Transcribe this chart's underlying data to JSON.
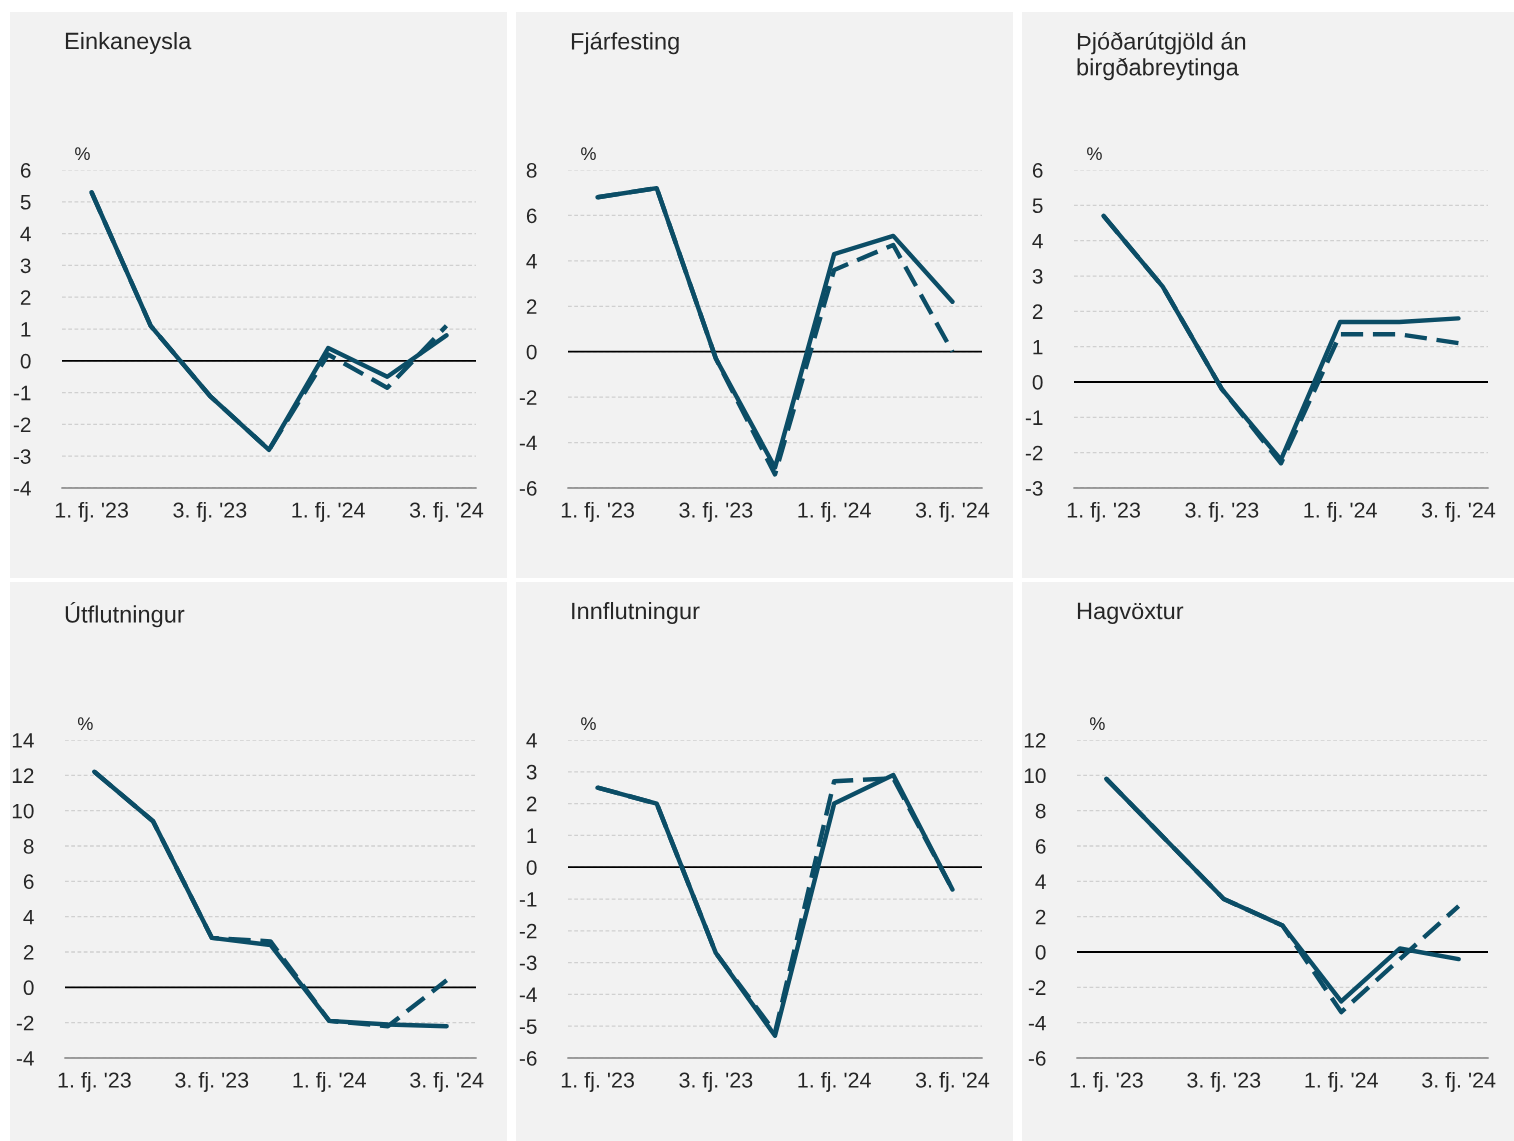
{
  "chart_data": [
    {
      "type": "line",
      "title": "Einkaneysla",
      "ylabel": "%",
      "categories": [
        "1. fj. '23",
        null,
        "3. fj. '23",
        null,
        "1. fj. '24",
        null,
        "3. fj. '24"
      ],
      "ylim": [
        -4,
        6
      ],
      "yticks": [
        -4,
        -3,
        -2,
        -1,
        0,
        1,
        2,
        3,
        4,
        5,
        6
      ],
      "grid": "y",
      "ref_lines": [
        {
          "axis": "y",
          "value": 0,
          "color": "#000000"
        }
      ],
      "series": [
        {
          "color": "#0b4d66",
          "line_style": "solid",
          "values": [
            5.3,
            1.1,
            -1.1,
            -2.8,
            0.4,
            -0.5,
            0.8
          ]
        },
        {
          "color": "#0b4d66",
          "line_style": "dashed",
          "values": [
            5.3,
            1.1,
            -1.1,
            -2.8,
            0.2,
            -0.85,
            1.1
          ]
        }
      ]
    },
    {
      "type": "line",
      "title": "Fjárfesting",
      "ylabel": "%",
      "categories": [
        "1. fj. '23",
        null,
        "3. fj. '23",
        null,
        "1. fj. '24",
        null,
        "3. fj. '24"
      ],
      "ylim": [
        -6,
        8
      ],
      "yticks": [
        -6,
        -4,
        -2,
        0,
        2,
        4,
        6,
        8
      ],
      "grid": "y",
      "ref_lines": [
        {
          "axis": "y",
          "value": 0,
          "color": "#000000"
        }
      ],
      "series": [
        {
          "color": "#0b4d66",
          "line_style": "solid",
          "values": [
            6.8,
            7.2,
            -0.3,
            -5.1,
            4.3,
            5.1,
            2.2
          ]
        },
        {
          "color": "#0b4d66",
          "line_style": "dashed",
          "values": [
            6.8,
            7.2,
            -0.3,
            -5.4,
            3.6,
            4.7,
            0.0
          ]
        }
      ]
    },
    {
      "type": "line",
      "title": "Þjóðarútgjöld án\nbirgðabreytinga",
      "ylabel": "%",
      "categories": [
        "1. fj. '23",
        null,
        "3. fj. '23",
        null,
        "1. fj. '24",
        null,
        "3. fj. '24"
      ],
      "ylim": [
        -3,
        6
      ],
      "yticks": [
        -3,
        -2,
        -1,
        0,
        1,
        2,
        3,
        4,
        5,
        6
      ],
      "grid": "y",
      "ref_lines": [
        {
          "axis": "y",
          "value": 0,
          "color": "#000000"
        }
      ],
      "series": [
        {
          "color": "#0b4d66",
          "line_style": "solid",
          "values": [
            4.7,
            2.7,
            -0.2,
            -2.2,
            1.7,
            1.7,
            1.8
          ]
        },
        {
          "color": "#0b4d66",
          "line_style": "dashed",
          "values": [
            4.7,
            2.7,
            -0.2,
            -2.3,
            1.35,
            1.35,
            1.1
          ]
        }
      ]
    },
    {
      "type": "line",
      "title": "Útflutningur",
      "ylabel": "%",
      "categories": [
        "1. fj. '23",
        null,
        "3. fj. '23",
        null,
        "1. fj. '24",
        null,
        "3. fj. '24"
      ],
      "ylim": [
        -4,
        14
      ],
      "yticks": [
        -4,
        -2,
        0,
        2,
        4,
        6,
        8,
        10,
        12,
        14
      ],
      "grid": "y",
      "ref_lines": [
        {
          "axis": "y",
          "value": 0,
          "color": "#000000"
        }
      ],
      "series": [
        {
          "color": "#0b4d66",
          "line_style": "solid",
          "values": [
            12.2,
            9.4,
            2.8,
            2.4,
            -1.9,
            -2.1,
            -2.2
          ]
        },
        {
          "color": "#0b4d66",
          "line_style": "dashed",
          "values": [
            12.2,
            9.4,
            2.8,
            2.6,
            -1.9,
            -2.2,
            0.4
          ]
        }
      ]
    },
    {
      "type": "line",
      "title": "Innflutningur",
      "ylabel": "%",
      "categories": [
        "1. fj. '23",
        null,
        "3. fj. '23",
        null,
        "1. fj. '24",
        null,
        "3. fj. '24"
      ],
      "ylim": [
        -6,
        4
      ],
      "yticks": [
        -6,
        -5,
        -4,
        -3,
        -2,
        -1,
        0,
        1,
        2,
        3,
        4
      ],
      "grid": "y",
      "ref_lines": [
        {
          "axis": "y",
          "value": 0,
          "color": "#000000"
        }
      ],
      "series": [
        {
          "color": "#0b4d66",
          "line_style": "solid",
          "values": [
            2.5,
            2.0,
            -2.7,
            -5.3,
            2.0,
            2.9,
            -0.7
          ]
        },
        {
          "color": "#0b4d66",
          "line_style": "dashed",
          "values": [
            2.5,
            2.0,
            -2.7,
            -5.2,
            2.7,
            2.8,
            -0.7
          ]
        }
      ]
    },
    {
      "type": "line",
      "title": "Hagvöxtur",
      "ylabel": "%",
      "categories": [
        "1. fj. '23",
        null,
        "3. fj. '23",
        null,
        "1. fj. '24",
        null,
        "3. fj. '24"
      ],
      "ylim": [
        -6,
        12
      ],
      "yticks": [
        -6,
        -4,
        -2,
        0,
        2,
        4,
        6,
        8,
        10,
        12
      ],
      "grid": "y",
      "ref_lines": [
        {
          "axis": "y",
          "value": 0,
          "color": "#000000"
        }
      ],
      "series": [
        {
          "color": "#0b4d66",
          "line_style": "solid",
          "values": [
            9.8,
            6.4,
            3.0,
            1.5,
            -2.8,
            0.2,
            -0.4
          ]
        },
        {
          "color": "#0b4d66",
          "line_style": "dashed",
          "values": [
            9.8,
            6.4,
            3.0,
            1.5,
            -3.4,
            -0.4,
            2.6
          ]
        }
      ]
    }
  ]
}
